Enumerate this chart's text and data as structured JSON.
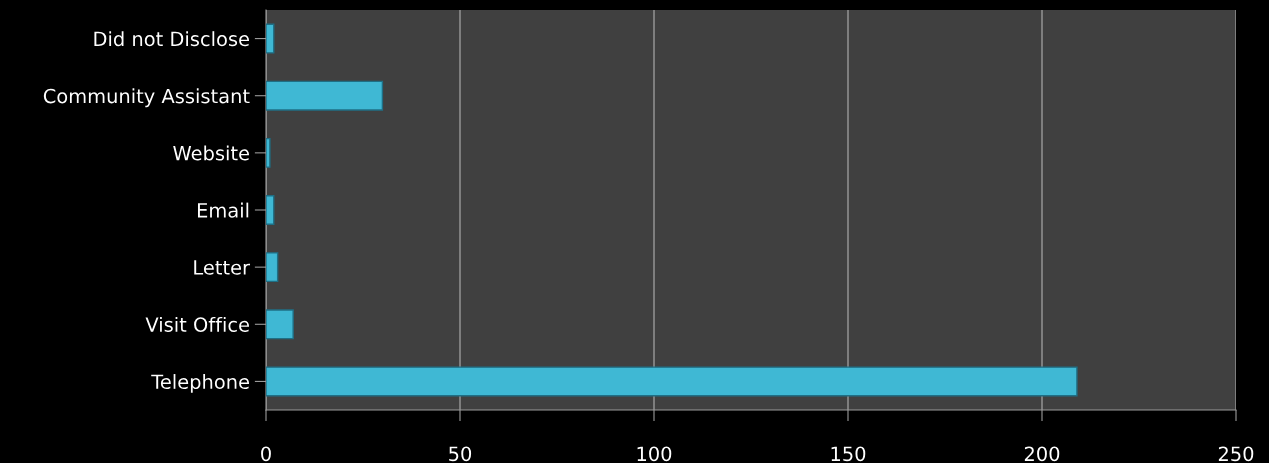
{
  "chart_data": {
    "type": "bar",
    "orientation": "horizontal",
    "categories": [
      "Did not Disclose",
      "Community Assistant",
      "Website",
      "Email",
      "Letter",
      "Visit Office",
      "Telephone"
    ],
    "values": [
      2,
      30,
      1,
      2,
      3,
      7,
      209
    ],
    "color": "#3fb8d4",
    "xlim": [
      0,
      250
    ],
    "xticks": [
      0,
      50,
      100,
      150,
      200,
      250
    ],
    "grid": "x"
  }
}
